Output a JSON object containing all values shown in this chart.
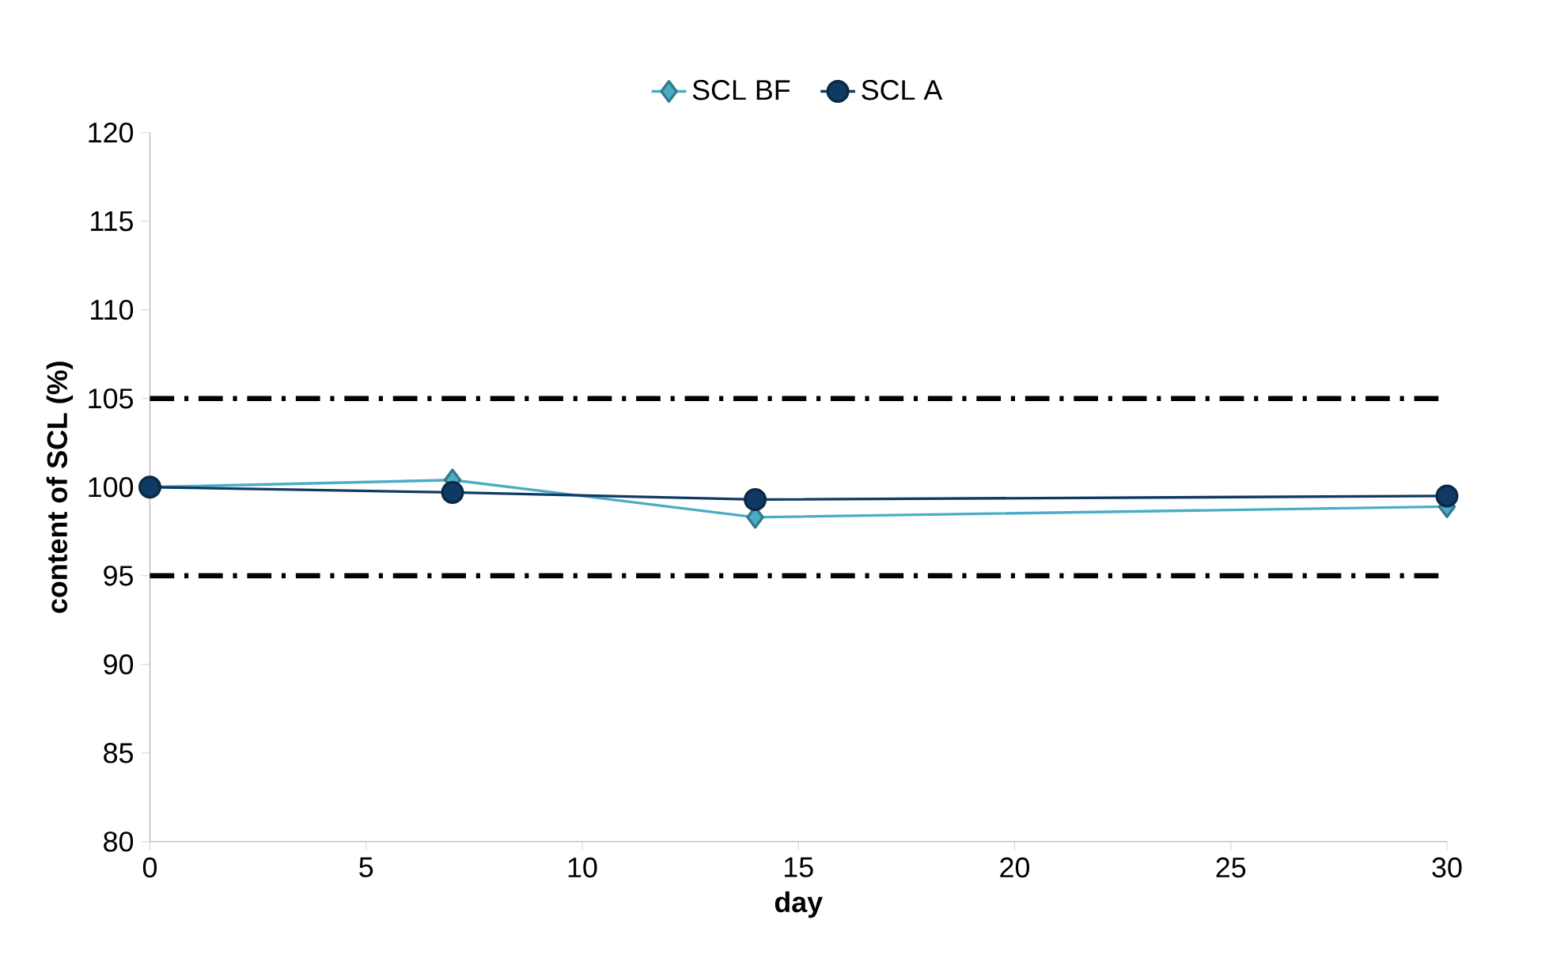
{
  "chart_data": {
    "type": "line",
    "xlabel": "day",
    "ylabel": "content of  SCL (%)",
    "x": [
      0,
      7,
      14,
      30
    ],
    "series": [
      {
        "name": "SCL BF",
        "color": "#4bacc6",
        "marker": "diamond",
        "values": [
          100,
          100.4,
          98.3,
          98.9
        ]
      },
      {
        "name": "SCL A",
        "color": "#0f3a63",
        "marker": "circle",
        "values": [
          100,
          99.7,
          99.3,
          99.5
        ]
      }
    ],
    "xlim": [
      0,
      30
    ],
    "ylim": [
      80,
      120
    ],
    "xticks": [
      0,
      5,
      10,
      15,
      20,
      25,
      30
    ],
    "yticks": [
      80,
      85,
      90,
      95,
      100,
      105,
      110,
      115,
      120
    ],
    "ref_lines": [
      {
        "axis": "y",
        "value": 105,
        "color": "#000000",
        "line_style": "dashdot"
      },
      {
        "axis": "y",
        "value": 95,
        "color": "#000000",
        "line_style": "dashdot"
      }
    ],
    "legend": "top",
    "grid": false
  }
}
